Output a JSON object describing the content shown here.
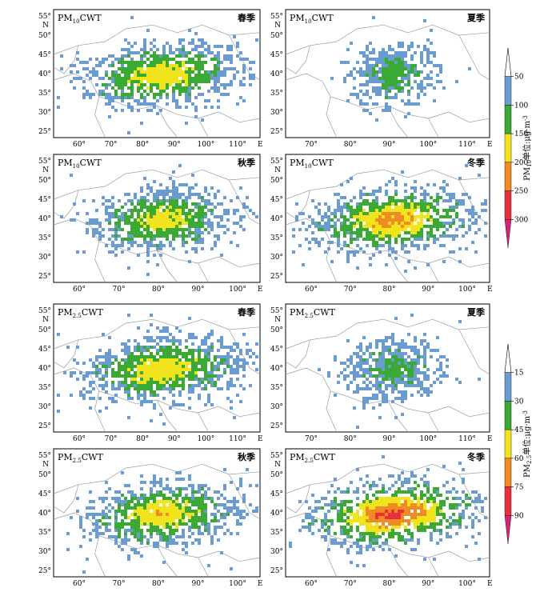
{
  "panels": [
    {
      "id": "pm10-spring",
      "pollutant": "PM",
      "subscript": "10",
      "tag": "CWT",
      "season": "春季",
      "seed": 11,
      "intensity": 0.55,
      "spread": 1.0,
      "lonLabels": [
        "60°",
        "70°",
        "80°",
        "90°",
        "100°",
        "110°"
      ],
      "latLabels": [
        "55°",
        "50°",
        "45°",
        "40°",
        "35°",
        "30°",
        "25°"
      ],
      "dir": "E",
      "north": "N"
    },
    {
      "id": "pm10-summer",
      "pollutant": "PM",
      "subscript": "10",
      "tag": "CWT",
      "season": "夏季",
      "seed": 23,
      "intensity": 0.25,
      "spread": 0.55,
      "lonLabels": [
        "70°",
        "80°",
        "90°",
        "100°",
        "110°"
      ],
      "latLabels": [
        "55°",
        "50°",
        "45°",
        "40°",
        "35°",
        "30°",
        "25°"
      ],
      "dir": "E",
      "north": "N"
    },
    {
      "id": "pm10-autumn",
      "pollutant": "PM",
      "subscript": "10",
      "tag": "CWT",
      "season": "秋季",
      "seed": 37,
      "intensity": 0.5,
      "spread": 0.85,
      "lonLabels": [
        "60°",
        "70°",
        "80°",
        "90°",
        "100°"
      ],
      "latLabels": [
        "55°",
        "50°",
        "45°",
        "40°",
        "35°",
        "30°",
        "25°"
      ],
      "dir": "E",
      "north": "N"
    },
    {
      "id": "pm10-winter",
      "pollutant": "PM",
      "subscript": "10",
      "tag": "CWT",
      "season": "冬季",
      "seed": 41,
      "intensity": 0.7,
      "spread": 1.0,
      "lonLabels": [
        "60°",
        "70°",
        "80°",
        "90°",
        "100°"
      ],
      "latLabels": [
        "55°",
        "50°",
        "45°",
        "40°",
        "35°",
        "30°",
        "25°"
      ],
      "dir": "E",
      "north": "N"
    },
    {
      "id": "pm25-spring",
      "pollutant": "PM",
      "subscript": "2.5",
      "tag": "CWT",
      "season": "春季",
      "seed": 53,
      "intensity": 0.55,
      "spread": 1.0,
      "lonLabels": [
        "60°",
        "70°",
        "80°",
        "90°",
        "100°",
        "110°"
      ],
      "latLabels": [
        "55°",
        "50°",
        "45°",
        "40°",
        "35°",
        "30°",
        "25°"
      ],
      "dir": "E",
      "north": "N"
    },
    {
      "id": "pm25-summer",
      "pollutant": "PM",
      "subscript": "2.5",
      "tag": "CWT",
      "season": "夏季",
      "seed": 67,
      "intensity": 0.25,
      "spread": 0.6,
      "lonLabels": [
        "70°",
        "80°",
        "90°",
        "100°",
        "110°"
      ],
      "latLabels": [
        "55°",
        "50°",
        "45°",
        "40°",
        "35°",
        "30°",
        "25°"
      ],
      "dir": "E",
      "north": "N"
    },
    {
      "id": "pm25-autumn",
      "pollutant": "PM",
      "subscript": "2.5",
      "tag": "CWT",
      "season": "秋季",
      "seed": 71,
      "intensity": 0.6,
      "spread": 0.9,
      "lonLabels": [
        "60°",
        "70°",
        "80°",
        "90°",
        "100°"
      ],
      "latLabels": [
        "55°",
        "50°",
        "45°",
        "40°",
        "35°",
        "30°",
        "25°"
      ],
      "dir": "E",
      "north": "N"
    },
    {
      "id": "pm25-winter",
      "pollutant": "PM",
      "subscript": "2.5",
      "tag": "CWT",
      "season": "冬季",
      "seed": 89,
      "intensity": 0.95,
      "spread": 1.0,
      "lonLabels": [
        "60°",
        "70°",
        "80°",
        "90°",
        "100°"
      ],
      "latLabels": [
        "55°",
        "50°",
        "45°",
        "40°",
        "35°",
        "30°",
        "25°"
      ],
      "dir": "E",
      "north": "N"
    }
  ],
  "legends": [
    {
      "id": "pm10-legend",
      "title": "PM",
      "sub": "10",
      "unit": "单位:μg·m",
      "exp": "-3",
      "ticks": [
        "50",
        "100",
        "150",
        "200",
        "250",
        "300"
      ]
    },
    {
      "id": "pm25-legend",
      "title": "PM",
      "sub": "2.5",
      "unit": "单位:μg·m",
      "exp": "-3",
      "ticks": [
        "15",
        "30",
        "45",
        "60",
        "75",
        "90"
      ]
    }
  ],
  "colors": {
    "level1": "#6a9bd1",
    "level2": "#3aaa35",
    "level3": "#f2e41c",
    "level4": "#f08a24",
    "level5": "#e8303a",
    "level6": "#d4237a",
    "border": "#9a9a9a",
    "frame": "#000000",
    "bg": "#ffffff"
  }
}
